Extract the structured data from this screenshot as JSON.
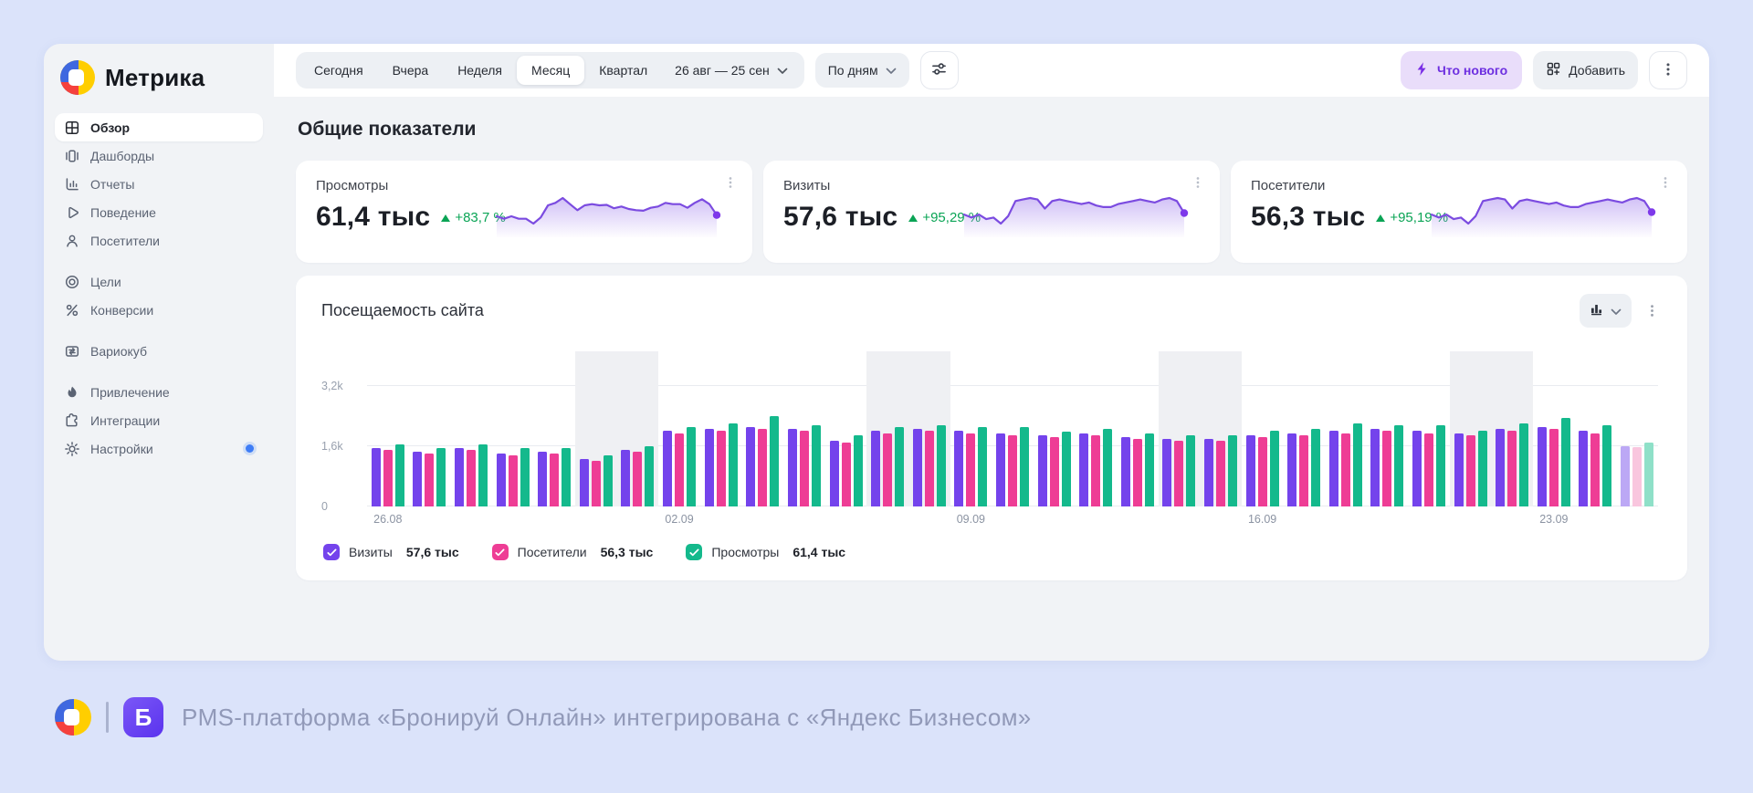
{
  "brand": {
    "app_name": "Метрика"
  },
  "sidebar": {
    "items": [
      {
        "key": "overview",
        "label": "Обзор",
        "icon": "overview-grid-icon",
        "active": true
      },
      {
        "key": "dashboards",
        "label": "Дашборды",
        "icon": "dashboards-icon"
      },
      {
        "key": "reports",
        "label": "Отчеты",
        "icon": "reports-icon"
      },
      {
        "key": "behavior",
        "label": "Поведение",
        "icon": "behavior-icon"
      },
      {
        "key": "visitors",
        "label": "Посетители",
        "icon": "visitors-icon"
      },
      {
        "key": "goals",
        "label": "Цели",
        "icon": "goals-icon",
        "group_start": true
      },
      {
        "key": "conversions",
        "label": "Конверсии",
        "icon": "conversions-icon"
      },
      {
        "key": "variocube",
        "label": "Вариокуб",
        "icon": "variocube-icon",
        "group_start": true
      },
      {
        "key": "attraction",
        "label": "Привлечение",
        "icon": "attraction-icon",
        "group_start": true
      },
      {
        "key": "integrations",
        "label": "Интеграции",
        "icon": "integrations-icon"
      },
      {
        "key": "settings",
        "label": "Настройки",
        "icon": "settings-icon",
        "badge": true
      }
    ]
  },
  "toolbar": {
    "period_tabs": [
      {
        "key": "today",
        "label": "Сегодня"
      },
      {
        "key": "yesterday",
        "label": "Вчера"
      },
      {
        "key": "week",
        "label": "Неделя"
      },
      {
        "key": "month",
        "label": "Месяц",
        "active": true
      },
      {
        "key": "quarter",
        "label": "Квартал"
      }
    ],
    "date_range": "26 авг — 25 сен",
    "granularity_label": "По дням",
    "whats_new_label": "Что нового",
    "add_label": "Добавить",
    "icons": {
      "filter": "sliders-icon",
      "whats_new": "lightning-icon",
      "add": "grid-plus-icon",
      "more": "kebab-menu-icon",
      "dropdown": "chevron-down-icon"
    }
  },
  "overview": {
    "title": "Общие показатели",
    "delta_color": "#0aa455",
    "cards": [
      {
        "label": "Просмотры",
        "value": "61,4 тыс",
        "delta": "+83,7 %",
        "series_key": "views"
      },
      {
        "label": "Визиты",
        "value": "57,6 тыс",
        "delta": "+95,29 %",
        "series_key": "visits"
      },
      {
        "label": "Посетители",
        "value": "56,3 тыс",
        "delta": "+95,19 %",
        "series_key": "visitors"
      }
    ]
  },
  "chart_data": {
    "type": "bar",
    "title": "Посещаемость сайта",
    "x": [
      "26.08",
      "27.08",
      "28.08",
      "29.08",
      "30.08",
      "31.08",
      "01.09",
      "02.09",
      "03.09",
      "04.09",
      "05.09",
      "06.09",
      "07.09",
      "08.09",
      "09.09",
      "10.09",
      "11.09",
      "12.09",
      "13.09",
      "14.09",
      "15.09",
      "16.09",
      "17.09",
      "18.09",
      "19.09",
      "20.09",
      "21.09",
      "22.09",
      "23.09",
      "24.09",
      "25.09"
    ],
    "tick_indices": [
      0,
      7,
      14,
      21,
      28
    ],
    "tick_labels": [
      "26.08",
      "02.09",
      "09.09",
      "16.09",
      "23.09"
    ],
    "yticks": [
      0,
      1600,
      3200
    ],
    "ytick_labels": [
      "0",
      "1,6k",
      "3,2k"
    ],
    "ylim": [
      0,
      3200
    ],
    "grid": "horizontal",
    "legend_position": "bottom",
    "weekend_indices": [
      5,
      6,
      12,
      13,
      19,
      20,
      26,
      27
    ],
    "faded_last_group": true,
    "series": [
      {
        "key": "visits",
        "name": "Визиты",
        "total": "57,6 тыс",
        "color": "#7443EC",
        "faded_color": "#BCA8F5",
        "values": [
          1550,
          1450,
          1550,
          1400,
          1450,
          1250,
          1500,
          2000,
          2050,
          2100,
          2050,
          1750,
          2000,
          2050,
          2000,
          1950,
          1900,
          1950,
          1850,
          1800,
          1800,
          1900,
          1950,
          2000,
          2050,
          2000,
          1950,
          2050,
          2100,
          2000,
          1600
        ]
      },
      {
        "key": "visitors",
        "name": "Посетители",
        "total": "56,3 тыс",
        "color": "#EE3D95",
        "faded_color": "#F9C6DE",
        "values": [
          1500,
          1400,
          1500,
          1350,
          1400,
          1200,
          1450,
          1950,
          2000,
          2050,
          2000,
          1700,
          1950,
          2000,
          1950,
          1900,
          1850,
          1900,
          1800,
          1750,
          1750,
          1850,
          1900,
          1950,
          2000,
          1950,
          1900,
          2000,
          2050,
          1950,
          1580
        ]
      },
      {
        "key": "views",
        "name": "Просмотры",
        "total": "61,4 тыс",
        "color": "#14B98C",
        "faded_color": "#8FE0C8",
        "values": [
          1650,
          1550,
          1650,
          1550,
          1550,
          1350,
          1600,
          2100,
          2200,
          2400,
          2150,
          1900,
          2100,
          2150,
          2100,
          2120,
          1980,
          2050,
          1950,
          1900,
          1880,
          2000,
          2050,
          2200,
          2150,
          2150,
          2000,
          2200,
          2350,
          2150,
          1700
        ]
      }
    ]
  },
  "footer": {
    "text": "PMS-платформа «Бронируй Онлайн» интегрирована с «Яндекс Бизнесом»"
  }
}
